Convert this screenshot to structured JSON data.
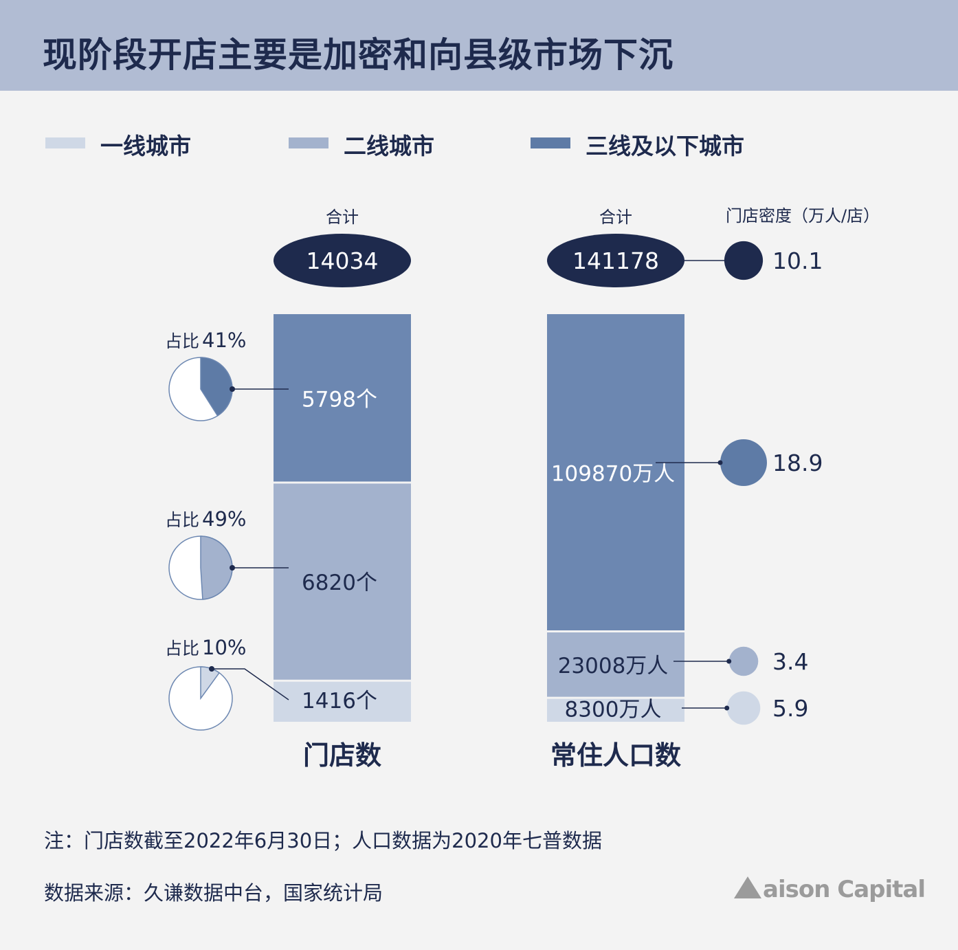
{
  "title": "现阶段开店主要是加密和向县级市场下沉",
  "legend": [
    {
      "label": "一线城市",
      "color": "#cfd8e6"
    },
    {
      "label": "二线城市",
      "color": "#a3b2cd"
    },
    {
      "label": "三线及以下城市",
      "color": "#5e7ba6"
    }
  ],
  "colors": {
    "header_bg": "#b1bcd3",
    "dark_navy": "#1e2a4d",
    "bar_tier1": "#cfd8e6",
    "bar_tier2": "#a3b2cd",
    "bar_tier3": "#6c87b1",
    "background": "#f3f3f3"
  },
  "chart_data": [
    {
      "type": "bar",
      "stacked": true,
      "xlabel": "门店数",
      "total_label": "合计",
      "total": "14034",
      "categories": [
        "一线城市",
        "二线城市",
        "三线及以下城市"
      ],
      "values": [
        1416,
        6820,
        5798
      ],
      "value_labels": [
        "1416个",
        "6820个",
        "5798个"
      ],
      "shares": [
        {
          "label": "占比",
          "value": "10%",
          "fraction": 0.1
        },
        {
          "label": "占比",
          "value": "49%",
          "fraction": 0.49
        },
        {
          "label": "占比",
          "value": "41%",
          "fraction": 0.41
        }
      ]
    },
    {
      "type": "bar",
      "stacked": true,
      "xlabel": "常住人口数",
      "total_label": "合计",
      "total": "141178",
      "categories": [
        "一线城市",
        "二线城市",
        "三线及以下城市"
      ],
      "values": [
        8300,
        23008,
        109870
      ],
      "value_labels": [
        "8300万人",
        "23008万人",
        "109870万人"
      ],
      "density": {
        "label": "门店密度（万人/店）",
        "total": 10.1,
        "values": [
          5.9,
          3.4,
          18.9
        ]
      }
    }
  ],
  "notes": {
    "note": "注：门店数截至2022年6月30日；人口数据为2020年七普数据",
    "source": "数据来源：久谦数据中台，国家统计局"
  },
  "brand": "aison Capital"
}
